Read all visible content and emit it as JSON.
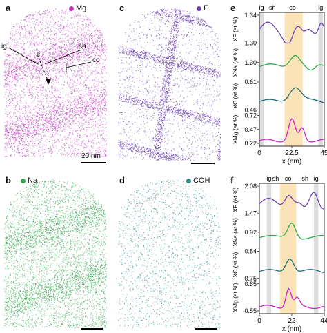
{
  "panels": {
    "a": {
      "label": "a",
      "element": "Mg",
      "color": "#c040c0",
      "scale": "20 nm",
      "annotations": {
        "ig": "ig",
        "e": "e",
        "sh": "sh",
        "co": "co"
      }
    },
    "b": {
      "label": "b",
      "element": "Na",
      "color": "#2fa64a"
    },
    "c": {
      "label": "c",
      "element": "F",
      "color": "#6a3fb0"
    },
    "d": {
      "label": "d",
      "element": "COH",
      "color": "#2a8a88"
    },
    "e": {
      "label": "e"
    },
    "f": {
      "label": "f"
    }
  },
  "chart_data": [
    {
      "type": "line",
      "panel": "e",
      "xlabel": "x (nm)",
      "xticks": [
        "0",
        "22.5",
        "45"
      ],
      "xlim": [
        0,
        45
      ],
      "regions": [
        {
          "label": "ig",
          "from": 0,
          "to": 3,
          "color": "#dcdcdc"
        },
        {
          "label": "sh",
          "from": 3,
          "to": 15,
          "color": ""
        },
        {
          "label": "co",
          "from": 17.5,
          "to": 30,
          "color": "#fbe3b8"
        },
        {
          "label": "ig",
          "from": 41,
          "to": 44,
          "color": "#dcdcdc"
        }
      ],
      "region_labels": [
        "ig",
        "sh",
        "co",
        "ig"
      ],
      "series": [
        {
          "name": "X_F",
          "ylabel": "XF (at.%)",
          "color": "#6a3fb0",
          "ylim": [
            1.28,
            1.38
          ],
          "ticks": [
            "1.34",
            "1.30"
          ]
        },
        {
          "name": "X_Na",
          "ylabel": "XNa (at.%)",
          "color": "#2fa64a",
          "ylim": [
            1.26,
            1.34
          ],
          "ticks": [
            "1.30"
          ]
        },
        {
          "name": "X_C",
          "ylabel": "XC (at.%)",
          "color": "#1f6b73",
          "ylim": [
            0.4,
            0.63
          ],
          "ticks": [
            "0.61",
            "0.46"
          ]
        },
        {
          "name": "X_Mg",
          "ylabel": "XMg (at.%)",
          "color": "#d020d0",
          "ylim": [
            0.2,
            0.8
          ],
          "ticks": [
            "0.72",
            "0.47",
            "0.22"
          ]
        }
      ]
    },
    {
      "type": "line",
      "panel": "f",
      "xlabel": "x (nm)",
      "xticks": [
        "0",
        "22",
        "44"
      ],
      "xlim": [
        0,
        44
      ],
      "regions": [
        {
          "label": "ig",
          "from": 5,
          "to": 8,
          "color": "#dcdcdc"
        },
        {
          "label": "sh",
          "from": 8,
          "to": 14,
          "color": ""
        },
        {
          "label": "co",
          "from": 14,
          "to": 25,
          "color": "#fbe3b8"
        },
        {
          "label": "ig",
          "from": 37,
          "to": 40,
          "color": "#dcdcdc"
        }
      ],
      "region_labels": [
        "ig",
        "sh",
        "co",
        "sh",
        "ig"
      ],
      "series": [
        {
          "name": "X_F",
          "ylabel": "XF (at.%)",
          "color": "#6a3fb0",
          "ylim": [
            1.4,
            2.15
          ],
          "ticks": [
            "2.08",
            "1.47"
          ]
        },
        {
          "name": "X_Na",
          "ylabel": "XNa (at.%)",
          "color": "#2fa64a",
          "ylim": [
            0.88,
            0.96
          ],
          "ticks": [
            "0.92"
          ]
        },
        {
          "name": "X_C",
          "ylabel": "XC (at.%)",
          "color": "#1f6b73",
          "ylim": [
            0.73,
            0.85
          ],
          "ticks": [
            "0.84",
            "0.75"
          ]
        },
        {
          "name": "X_Mg",
          "ylabel": "XMg (at.%)",
          "color": "#d020d0",
          "ylim": [
            0.5,
            0.9
          ],
          "ticks": [
            "0.85",
            "0.55"
          ]
        }
      ]
    }
  ]
}
